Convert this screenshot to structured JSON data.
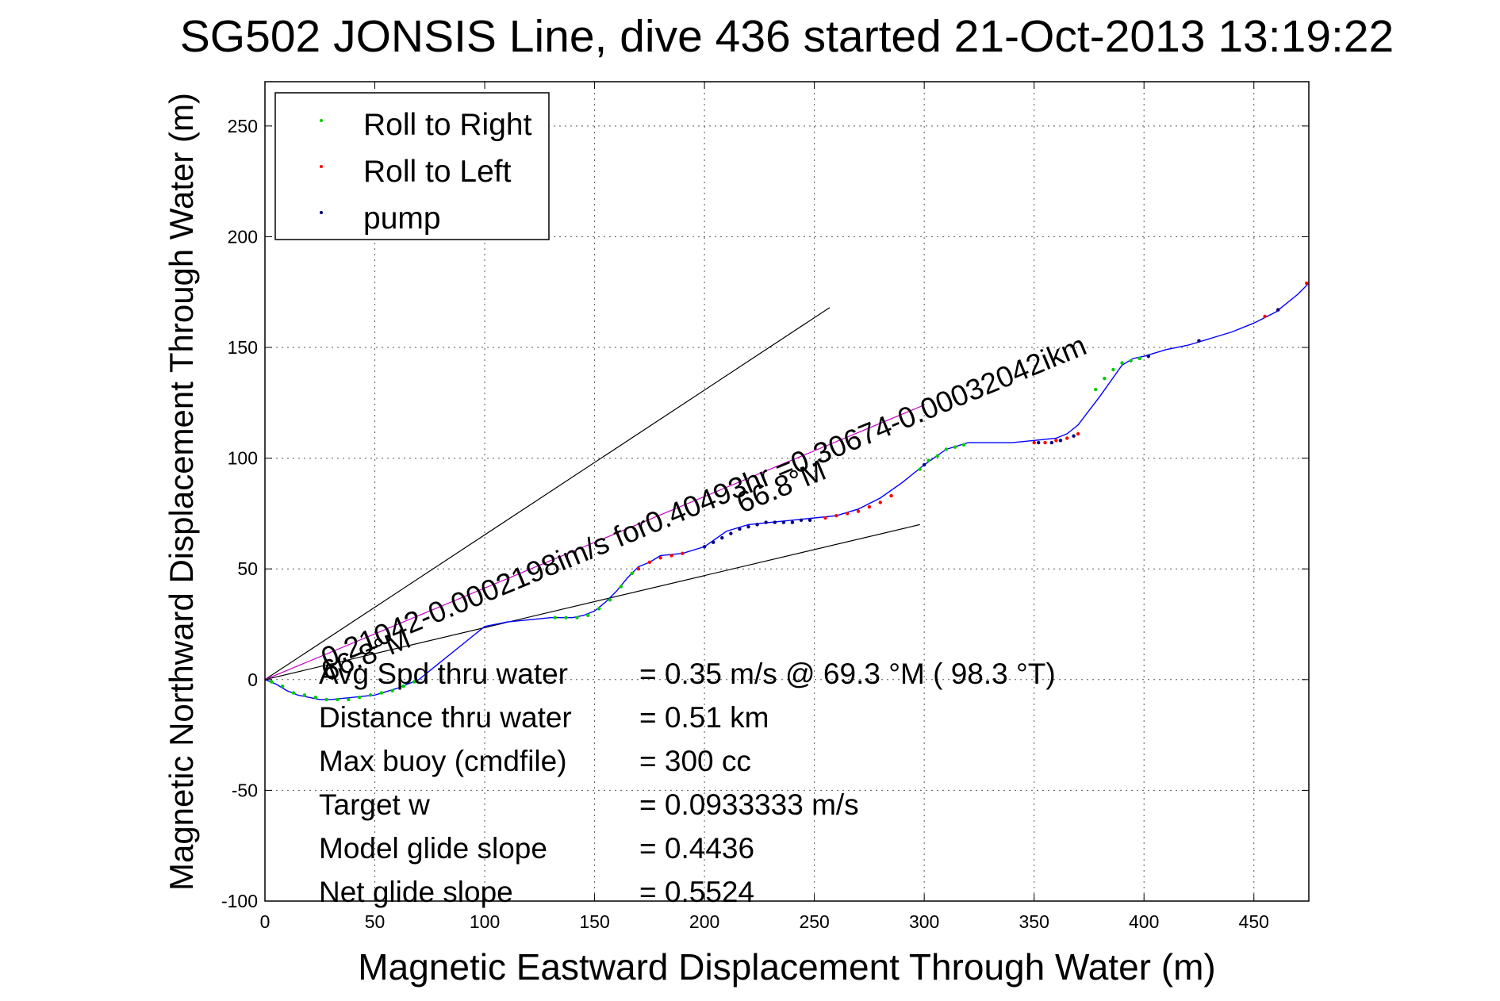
{
  "chart_data": {
    "type": "line",
    "title": "SG502 JONSIS Line, dive 436 started 21-Oct-2013 13:19:22",
    "xlabel": "Magnetic Eastward Displacement Through Water (m)",
    "ylabel": "Magnetic Northward Displacement Through Water (m)",
    "xlim": [
      0,
      475
    ],
    "ylim": [
      -100,
      270
    ],
    "xticks": [
      0,
      50,
      100,
      150,
      200,
      250,
      300,
      350,
      400,
      450
    ],
    "yticks": [
      -100,
      -50,
      0,
      50,
      100,
      150,
      200,
      250
    ],
    "grid": true,
    "legend_position": "top-left",
    "legend": [
      {
        "label": "Roll to Right",
        "color": "#00cc00"
      },
      {
        "label": "Roll to Left",
        "color": "#ff0000"
      },
      {
        "label": "pump",
        "color": "#000080"
      }
    ],
    "track": {
      "color": "#0000ff",
      "x": [
        0,
        5,
        10,
        15,
        20,
        25,
        30,
        40,
        50,
        60,
        70,
        80,
        90,
        100,
        110,
        120,
        130,
        140,
        145,
        150,
        155,
        160,
        165,
        170,
        175,
        180,
        190,
        200,
        210,
        220,
        230,
        240,
        250,
        260,
        270,
        280,
        290,
        300,
        310,
        320,
        330,
        340,
        350,
        360,
        365,
        370,
        380,
        390,
        395,
        400,
        410,
        420,
        430,
        440,
        450,
        460,
        470,
        475
      ],
      "y": [
        0,
        -2,
        -5,
        -7,
        -8,
        -9,
        -9,
        -8,
        -7,
        -4,
        0,
        8,
        16,
        24,
        26,
        27,
        28,
        28,
        29,
        31,
        35,
        40,
        46,
        51,
        53,
        56,
        57,
        60,
        67,
        70,
        71,
        72,
        73,
        74,
        77,
        82,
        89,
        97,
        104,
        107,
        107,
        107,
        108,
        109,
        111,
        115,
        128,
        142,
        145,
        146,
        149,
        151,
        154,
        157,
        161,
        166,
        174,
        179
      ]
    },
    "roll_right_points": {
      "x": [
        3,
        8,
        13,
        18,
        23,
        28,
        33,
        38,
        43,
        48,
        53,
        58,
        63,
        68,
        132,
        137,
        142,
        147,
        152,
        157,
        162,
        167,
        298,
        302,
        306,
        310,
        314,
        318,
        378,
        382,
        386,
        390,
        394,
        398
      ],
      "y": [
        -1,
        -3,
        -6,
        -7,
        -8,
        -9,
        -9,
        -9,
        -8,
        -7,
        -6,
        -5,
        -3,
        -1,
        28,
        28,
        28,
        29,
        32,
        36,
        42,
        48,
        95,
        99,
        101,
        104,
        105,
        106,
        131,
        136,
        140,
        143,
        144,
        145
      ]
    },
    "roll_left_points": {
      "x": [
        170,
        175,
        180,
        185,
        190,
        255,
        260,
        265,
        270,
        275,
        280,
        285,
        350,
        355,
        360,
        365,
        370,
        425,
        455,
        461,
        474
      ],
      "y": [
        50,
        53,
        55,
        56,
        57,
        73,
        74,
        75,
        76,
        78,
        80,
        83,
        107,
        107,
        108,
        109,
        111,
        153,
        164,
        167,
        179
      ]
    },
    "pump_points": {
      "x": [
        200,
        204,
        208,
        212,
        216,
        220,
        224,
        228,
        232,
        236,
        240,
        244,
        248,
        300,
        352,
        358,
        362,
        368,
        402,
        425,
        461
      ],
      "y": [
        60,
        62,
        64,
        66,
        68,
        69,
        70,
        71,
        71,
        71,
        71,
        72,
        72,
        97,
        107,
        107,
        108,
        110,
        146,
        153,
        167
      ]
    },
    "bearing_lines": {
      "color": "#000000",
      "lines": [
        {
          "x": [
            0,
            257
          ],
          "y": [
            0,
            168
          ]
        },
        {
          "x": [
            0,
            298
          ],
          "y": [
            0,
            70
          ]
        }
      ]
    },
    "current_line": {
      "color": "#cc00cc",
      "x": [
        0,
        300
      ],
      "y": [
        0,
        124
      ]
    },
    "annotations": [
      {
        "text": "0.21042-0.0002198im/s for0.40493hr =0.30674-0.00032042ikm",
        "x": 28,
        "y": 5,
        "angle_deg": 22.5
      },
      {
        "text": "66.8°M",
        "x": 28,
        "y": -1,
        "angle_deg": 22.5
      },
      {
        "text": "66.8°M",
        "x": 217,
        "y": 75,
        "angle_deg": 22.5
      }
    ],
    "stats": [
      {
        "label": "Avg Spd thru water",
        "value": "=  0.35 m/s @  69.3 °M ( 98.3 °T)"
      },
      {
        "label": "Distance thru water",
        "value": "=  0.51 km"
      },
      {
        "label": "Max buoy (cmdfile)",
        "value": "= 300 cc"
      },
      {
        "label": "Target w",
        "value": "= 0.0933333 m/s"
      },
      {
        "label": "Model glide slope",
        "value": "= 0.4436"
      },
      {
        "label": "Net glide slope",
        "value": "= 0.5524"
      }
    ]
  }
}
